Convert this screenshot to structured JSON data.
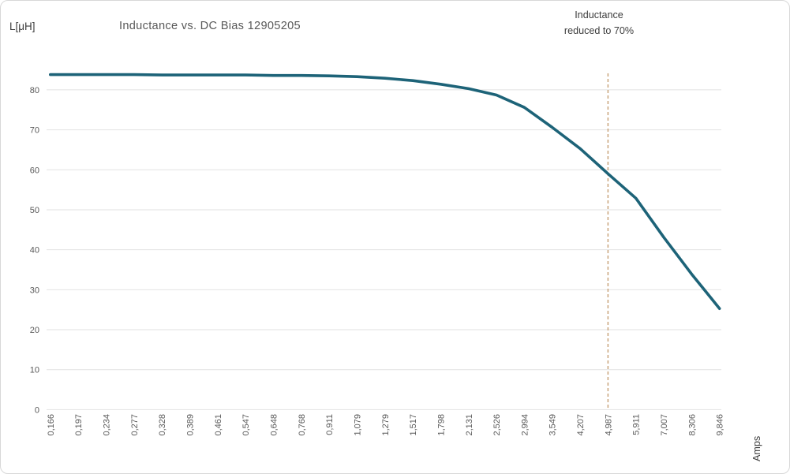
{
  "annotation": {
    "lines": [
      "Inductance",
      "reduced to 70%"
    ]
  },
  "chart_data": {
    "type": "line",
    "title": "Inductance vs. DC Bias 12905205",
    "xlabel": "Amps",
    "ylabel": "L[μH]",
    "categories": [
      "0,166",
      "0,197",
      "0,234",
      "0,277",
      "0,328",
      "0,389",
      "0,461",
      "0,547",
      "0,648",
      "0,768",
      "0,911",
      "1,079",
      "1,279",
      "1,517",
      "1,798",
      "2,131",
      "2,526",
      "2,994",
      "3,549",
      "4,207",
      "4,987",
      "5,911",
      "7,007",
      "8,306",
      "9,846"
    ],
    "series": [
      {
        "name": "Inductance",
        "values": [
          83.8,
          83.8,
          83.8,
          83.8,
          83.7,
          83.7,
          83.7,
          83.7,
          83.6,
          83.6,
          83.5,
          83.3,
          82.9,
          82.3,
          81.4,
          80.3,
          78.7,
          75.6,
          70.6,
          65.3,
          59.0,
          52.9,
          43.1,
          33.9,
          25.3
        ]
      }
    ],
    "y_ticks": [
      0,
      10,
      20,
      30,
      40,
      50,
      60,
      70,
      80
    ],
    "ylim": [
      0,
      80
    ],
    "grid": "horizontal",
    "legend": "none",
    "reference_line": {
      "category": "4,987",
      "label": "Inductance reduced to 70%",
      "style": "dashed"
    },
    "colors": {
      "line": "#1d6378",
      "reference": "#c9a47b",
      "grid": "#e2e2e2",
      "tick_text": "#595959",
      "title_text": "#595959",
      "label_text": "#3d3d3d"
    }
  }
}
